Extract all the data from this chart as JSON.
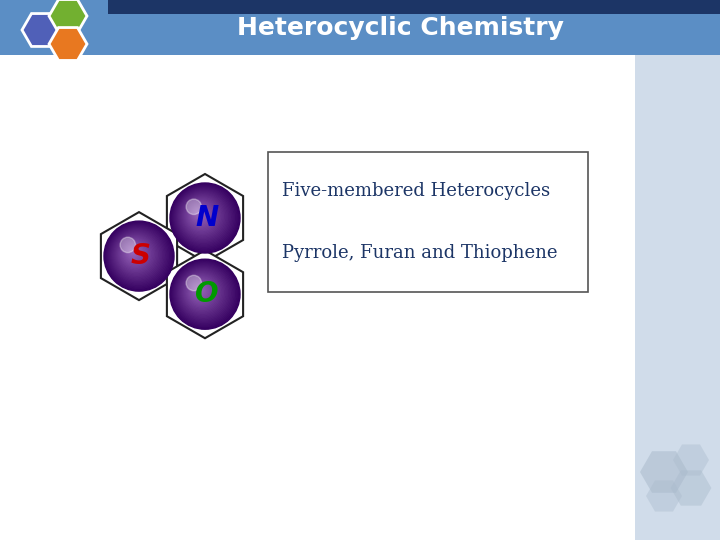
{
  "title": "Heterocyclic Chemistry",
  "line1": "Five-membered Heterocycles",
  "line2": "Pyrrole, Furan and Thiophene",
  "header_bg_color": "#5b8ec5",
  "header_dark_color": "#1c3566",
  "sidebar_color": "#d0dcea",
  "body_bg": "#ffffff",
  "title_color": "#ffffff",
  "text_color": "#1c3566",
  "hex_N_color": "#0000cc",
  "hex_S_color": "#cc0000",
  "hex_O_color": "#009900",
  "ball_color_light": "#9966bb",
  "ball_color_dark": "#350060",
  "hex_logo_colors": [
    "#5060b8",
    "#72b030",
    "#e87820"
  ],
  "box_border_color": "#555555",
  "deco_hex_color": "#aabbcc"
}
